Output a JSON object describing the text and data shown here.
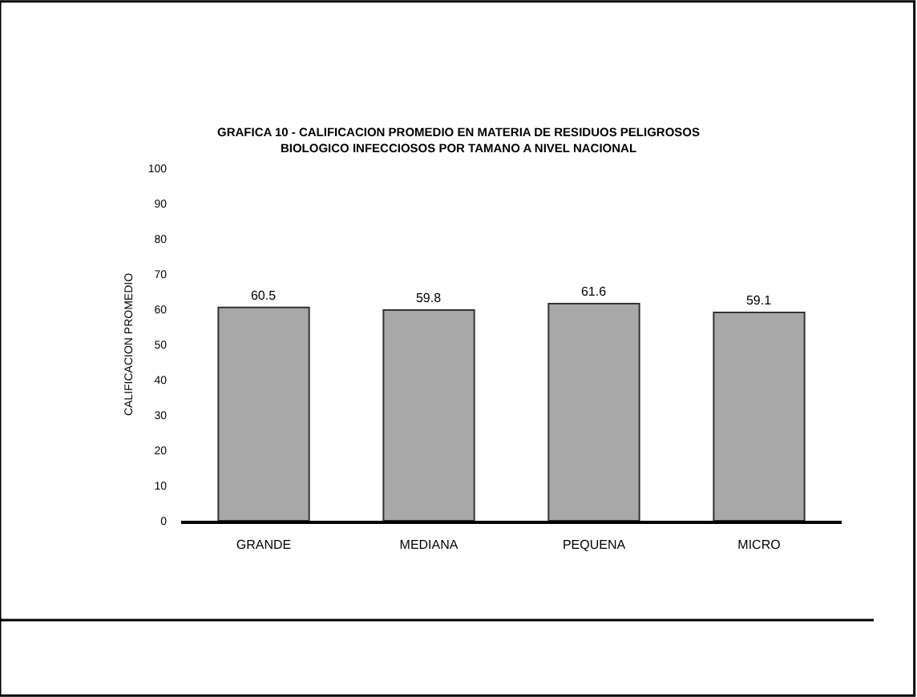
{
  "chart_data": {
    "type": "bar",
    "title": "GRAFICA 10 - CALIFICACION PROMEDIO EN MATERIA DE RESIDUOS PELIGROSOS\nBIOLOGICO INFECCIOSOS POR TAMANO A NIVEL NACIONAL",
    "ylabel": "CALIFICACION PROMEDIO",
    "categories": [
      "GRANDE",
      "MEDIANA",
      "PEQUENA",
      "MICRO"
    ],
    "values": [
      60.5,
      59.8,
      61.6,
      59.1
    ],
    "color": "#a8a8a8",
    "ylim": [
      0,
      100
    ],
    "yticks": [
      0,
      10,
      20,
      30,
      40,
      50,
      60,
      70,
      80,
      90,
      100
    ],
    "data_labels": true
  }
}
